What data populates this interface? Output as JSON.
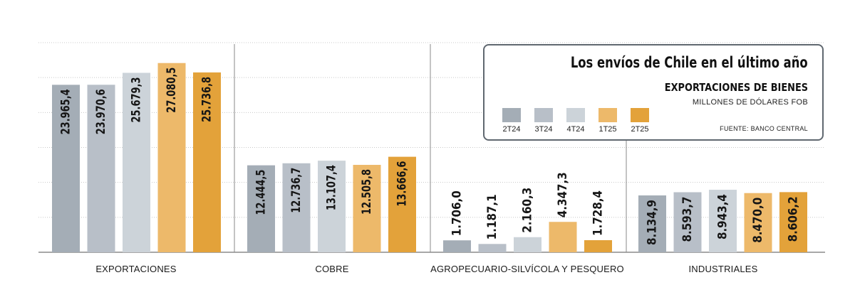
{
  "chart_data": {
    "type": "bar",
    "title": "Los envíos de Chile en el último año",
    "subtitle": "EXPORTACIONES DE BIENES",
    "units": "MILLONES DE DÓLARES FOB",
    "source": "FUENTE: BANCO CENTRAL",
    "categories": [
      "EXPORTACIONES",
      "COBRE",
      "AGROPECUARIO-SILVÍCOLA Y PESQUERO",
      "INDUSTRIALES"
    ],
    "series": [
      {
        "name": "2T24",
        "color": "#a4adb6",
        "values": [
          23965.4,
          12444.5,
          1706.0,
          8134.9
        ],
        "labels": [
          "23.965,4",
          "12.444,5",
          "1.706,0",
          "8.134,9"
        ]
      },
      {
        "name": "3T24",
        "color": "#b8bfc8",
        "values": [
          23970.6,
          12736.7,
          1187.1,
          8593.7
        ],
        "labels": [
          "23.970,6",
          "12.736,7",
          "1.187,1",
          "8.593,7"
        ]
      },
      {
        "name": "4T24",
        "color": "#ccd3d9",
        "values": [
          25679.3,
          13107.4,
          2160.3,
          8943.4
        ],
        "labels": [
          "25.679,3",
          "13.107,4",
          "2.160,3",
          "8.943,4"
        ]
      },
      {
        "name": "1T25",
        "color": "#edb96a",
        "values": [
          27080.5,
          12505.8,
          4347.3,
          8470.0
        ],
        "labels": [
          "27.080,5",
          "12.505,8",
          "4.347,3",
          "8.470,0"
        ]
      },
      {
        "name": "2T25",
        "color": "#e3a23a",
        "values": [
          25736.8,
          13666.6,
          1728.4,
          8606.2
        ],
        "labels": [
          "25.736,8",
          "13.666,6",
          "1.728,4",
          "8.606,2"
        ]
      }
    ],
    "ylim": [
      0,
      30000
    ],
    "grid": true,
    "legend_position": "top-right"
  }
}
